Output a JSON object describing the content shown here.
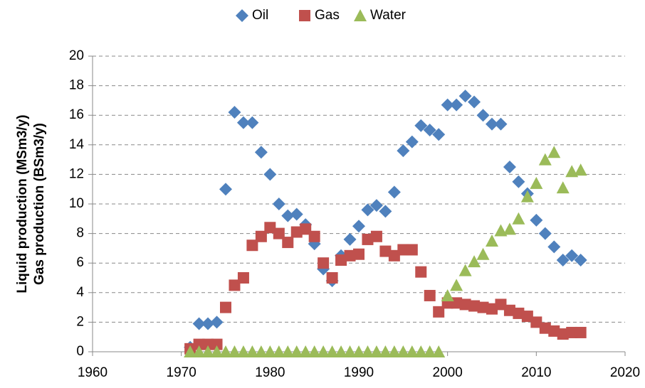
{
  "chart_data": {
    "type": "scatter",
    "ylabel": [
      "Liquid production (MSm3/y)",
      "Gas production (BSm3/y)"
    ],
    "x": [
      1971,
      1972,
      1973,
      1974,
      1975,
      1976,
      1977,
      1978,
      1979,
      1980,
      1981,
      1982,
      1983,
      1984,
      1985,
      1986,
      1987,
      1988,
      1989,
      1990,
      1991,
      1992,
      1993,
      1994,
      1995,
      1996,
      1997,
      1998,
      1999,
      2000,
      2001,
      2002,
      2003,
      2004,
      2005,
      2006,
      2007,
      2008,
      2009,
      2010,
      2011,
      2012,
      2013,
      2014,
      2015
    ],
    "series": [
      {
        "name": "Oil",
        "color": "#4f81bd",
        "marker": "diamond",
        "values": [
          0.3,
          1.9,
          1.9,
          2.0,
          11.0,
          16.2,
          15.5,
          15.5,
          13.5,
          12.0,
          10.0,
          9.2,
          9.3,
          8.6,
          7.3,
          5.6,
          4.8,
          6.5,
          7.6,
          8.5,
          9.6,
          9.9,
          9.5,
          10.8,
          13.6,
          14.2,
          15.3,
          15.0,
          14.7,
          16.7,
          16.7,
          17.3,
          16.9,
          16.0,
          15.4,
          15.4,
          12.5,
          11.5,
          10.7,
          8.9,
          8.0,
          7.1,
          6.2,
          6.5,
          6.2
        ]
      },
      {
        "name": "Gas",
        "color": "#c0504d",
        "marker": "square",
        "values": [
          0.2,
          0.5,
          0.5,
          0.5,
          3.0,
          4.5,
          5.0,
          7.2,
          7.8,
          8.4,
          8.0,
          7.4,
          8.1,
          8.3,
          7.8,
          6.0,
          5.0,
          6.2,
          6.5,
          6.6,
          7.6,
          7.8,
          6.8,
          6.5,
          6.9,
          6.9,
          5.4,
          3.8,
          2.7,
          3.3,
          3.3,
          3.2,
          3.1,
          3.0,
          2.9,
          3.2,
          2.8,
          2.6,
          2.4,
          2.0,
          1.6,
          1.4,
          1.2,
          1.3,
          1.3
        ]
      },
      {
        "name": "Water",
        "color": "#9bbb59",
        "marker": "triangle",
        "values": [
          0,
          0,
          0,
          0,
          0,
          0,
          0,
          0,
          0,
          0,
          0,
          0,
          0,
          0,
          0,
          0,
          0,
          0,
          0,
          0,
          0,
          0,
          0,
          0,
          0,
          0,
          0,
          0,
          0,
          3.8,
          4.5,
          5.5,
          6.1,
          6.6,
          7.5,
          8.2,
          8.3,
          9.0,
          10.5,
          11.4,
          13.0,
          13.5,
          11.1,
          12.2,
          12.3
        ]
      }
    ],
    "xlim": [
      1960,
      2020
    ],
    "xticks": [
      1960,
      1970,
      1980,
      1990,
      2000,
      2010,
      2020
    ],
    "ylim": [
      0,
      20
    ],
    "yticks": [
      0,
      2,
      4,
      6,
      8,
      10,
      12,
      14,
      16,
      18,
      20
    ],
    "grid": true,
    "legend": "top"
  }
}
